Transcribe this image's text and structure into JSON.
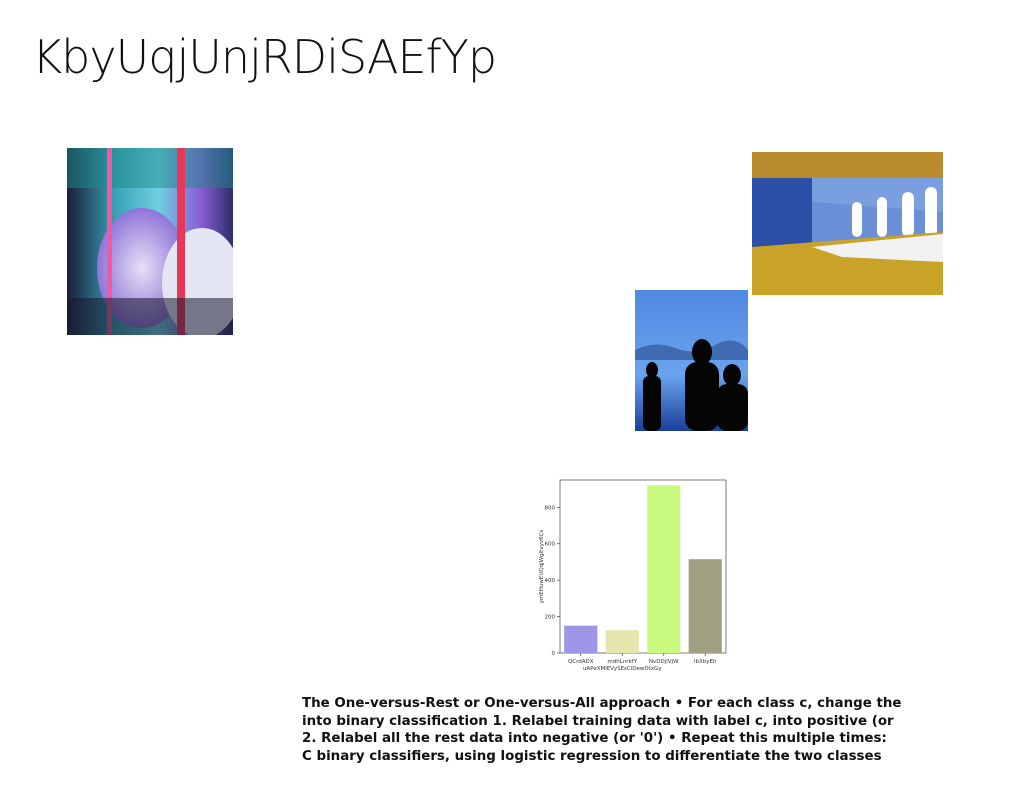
{
  "slide": {
    "title": "KbyUqjUnjRDiSAEfYp",
    "body_lines": [
      "The One-versus-Rest or One-versus-All approach • For each class c, change the",
      "into binary classification 1. Relabel training data with label c, into positive (or",
      "2. Relabel all the rest data into negative (or '0') • Repeat this multiple times:",
      "C binary classifiers, using logistic regression to differentiate the two classes"
    ]
  },
  "chart_data": {
    "type": "bar",
    "categories": [
      "QCrdADX",
      "mdhLnrkfY\nuAPeXMlEVySEsCiDewDtxGy",
      "NvDDjlVjW",
      "lbXbyEh"
    ],
    "values": [
      150,
      125,
      920,
      515
    ],
    "colors": [
      "#9f96e6",
      "#e5e6ae",
      "#c9f97f",
      "#a19f82"
    ],
    "ylabel": "ymEHuwEUQqjWgltvyvfICs",
    "xlabel": "",
    "ylim": [
      0,
      950
    ],
    "yticks": [
      0,
      200,
      400,
      600,
      800
    ],
    "grid": false
  }
}
